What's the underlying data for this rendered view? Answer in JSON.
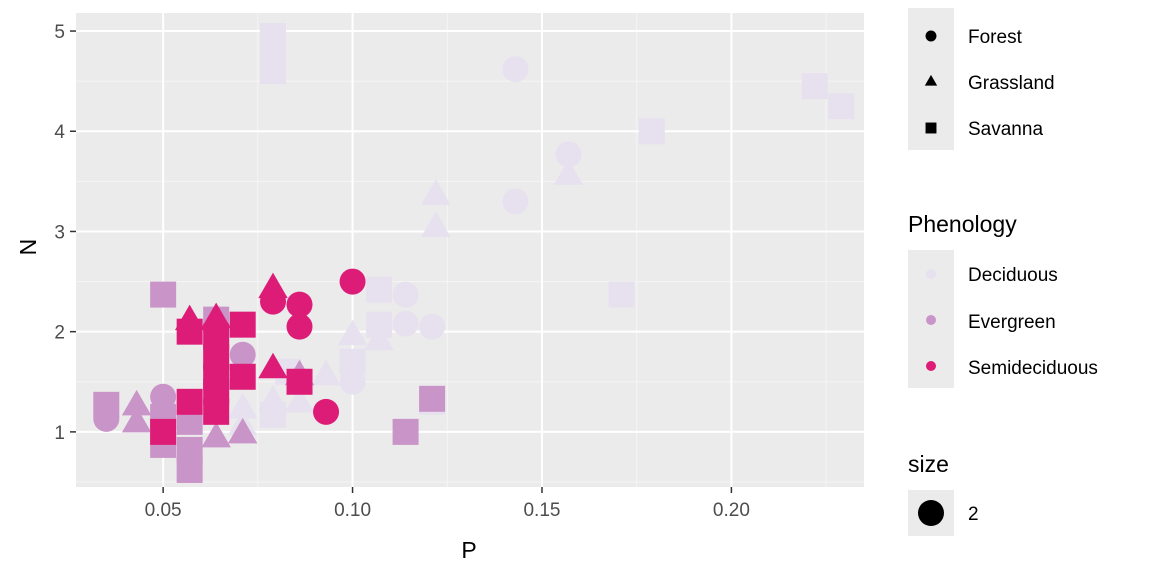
{
  "chart_data": {
    "type": "scatter",
    "xlabel": "P",
    "ylabel": "N",
    "xlim": [
      0.027,
      0.235
    ],
    "ylim": [
      0.45,
      5.18
    ],
    "x_ticks": [
      0.05,
      0.1,
      0.15,
      0.2
    ],
    "x_tick_labels": [
      "0.05",
      "0.10",
      "0.15",
      "0.20"
    ],
    "y_ticks": [
      1,
      2,
      3,
      4,
      5
    ],
    "y_tick_labels": [
      "1",
      "2",
      "3",
      "4",
      "5"
    ],
    "grid": true,
    "legend_position": "right",
    "shape_legend": {
      "title_visible": "",
      "entries": [
        {
          "label": "Forest",
          "shape": "circle"
        },
        {
          "label": "Grassland",
          "shape": "triangle"
        },
        {
          "label": "Savanna",
          "shape": "square"
        }
      ]
    },
    "color_legend": {
      "title": "Phenology",
      "entries": [
        {
          "label": "Deciduous",
          "color": "#e7e1ef"
        },
        {
          "label": "Evergreen",
          "color": "#c994c7"
        },
        {
          "label": "Semideciduous",
          "color": "#dd1c77"
        }
      ]
    },
    "size_legend": {
      "title": "size",
      "entries": [
        {
          "label": "2"
        }
      ]
    },
    "points": [
      {
        "x": 0.079,
        "y": 4.6,
        "shape": "square",
        "phenology": "Deciduous"
      },
      {
        "x": 0.079,
        "y": 4.95,
        "shape": "square",
        "phenology": "Deciduous"
      },
      {
        "x": 0.079,
        "y": 4.75,
        "shape": "square",
        "phenology": "Deciduous"
      },
      {
        "x": 0.143,
        "y": 4.62,
        "shape": "circle",
        "phenology": "Deciduous"
      },
      {
        "x": 0.157,
        "y": 3.77,
        "shape": "circle",
        "phenology": "Deciduous"
      },
      {
        "x": 0.157,
        "y": 3.55,
        "shape": "triangle",
        "phenology": "Deciduous"
      },
      {
        "x": 0.143,
        "y": 3.3,
        "shape": "circle",
        "phenology": "Deciduous"
      },
      {
        "x": 0.122,
        "y": 3.35,
        "shape": "triangle",
        "phenology": "Deciduous"
      },
      {
        "x": 0.122,
        "y": 3.03,
        "shape": "triangle",
        "phenology": "Deciduous"
      },
      {
        "x": 0.179,
        "y": 4.0,
        "shape": "square",
        "phenology": "Deciduous"
      },
      {
        "x": 0.222,
        "y": 4.45,
        "shape": "square",
        "phenology": "Deciduous"
      },
      {
        "x": 0.229,
        "y": 4.25,
        "shape": "square",
        "phenology": "Deciduous"
      },
      {
        "x": 0.171,
        "y": 2.37,
        "shape": "square",
        "phenology": "Deciduous"
      },
      {
        "x": 0.114,
        "y": 2.37,
        "shape": "circle",
        "phenology": "Deciduous"
      },
      {
        "x": 0.107,
        "y": 2.42,
        "shape": "square",
        "phenology": "Deciduous"
      },
      {
        "x": 0.114,
        "y": 2.08,
        "shape": "circle",
        "phenology": "Deciduous"
      },
      {
        "x": 0.121,
        "y": 2.05,
        "shape": "circle",
        "phenology": "Deciduous"
      },
      {
        "x": 0.107,
        "y": 2.07,
        "shape": "square",
        "phenology": "Deciduous"
      },
      {
        "x": 0.1,
        "y": 1.95,
        "shape": "triangle",
        "phenology": "Deciduous"
      },
      {
        "x": 0.107,
        "y": 1.9,
        "shape": "triangle",
        "phenology": "Deciduous"
      },
      {
        "x": 0.093,
        "y": 1.55,
        "shape": "triangle",
        "phenology": "Deciduous"
      },
      {
        "x": 0.1,
        "y": 1.5,
        "shape": "circle",
        "phenology": "Deciduous"
      },
      {
        "x": 0.1,
        "y": 1.7,
        "shape": "square",
        "phenology": "Deciduous"
      },
      {
        "x": 0.064,
        "y": 1.4,
        "shape": "triangle",
        "phenology": "Deciduous"
      },
      {
        "x": 0.071,
        "y": 1.22,
        "shape": "triangle",
        "phenology": "Deciduous"
      },
      {
        "x": 0.079,
        "y": 1.17,
        "shape": "square",
        "phenology": "Deciduous"
      },
      {
        "x": 0.079,
        "y": 1.3,
        "shape": "triangle",
        "phenology": "Deciduous"
      },
      {
        "x": 0.086,
        "y": 1.28,
        "shape": "triangle",
        "phenology": "Deciduous"
      },
      {
        "x": 0.071,
        "y": 1.05,
        "shape": "triangle",
        "phenology": "Deciduous"
      },
      {
        "x": 0.083,
        "y": 1.6,
        "shape": "square",
        "phenology": "Deciduous"
      },
      {
        "x": 0.057,
        "y": 1.3,
        "shape": "circle",
        "phenology": "Deciduous"
      },
      {
        "x": 0.05,
        "y": 1.2,
        "shape": "triangle",
        "phenology": "Deciduous"
      },
      {
        "x": 0.121,
        "y": 1.3,
        "shape": "square",
        "phenology": "Deciduous"
      },
      {
        "x": 0.05,
        "y": 2.37,
        "shape": "square",
        "phenology": "Evergreen"
      },
      {
        "x": 0.071,
        "y": 1.77,
        "shape": "circle",
        "phenology": "Evergreen"
      },
      {
        "x": 0.064,
        "y": 2.12,
        "shape": "square",
        "phenology": "Evergreen"
      },
      {
        "x": 0.035,
        "y": 1.27,
        "shape": "square",
        "phenology": "Evergreen"
      },
      {
        "x": 0.035,
        "y": 1.13,
        "shape": "circle",
        "phenology": "Evergreen"
      },
      {
        "x": 0.043,
        "y": 1.25,
        "shape": "triangle",
        "phenology": "Evergreen"
      },
      {
        "x": 0.043,
        "y": 1.08,
        "shape": "triangle",
        "phenology": "Evergreen"
      },
      {
        "x": 0.05,
        "y": 1.35,
        "shape": "circle",
        "phenology": "Evergreen"
      },
      {
        "x": 0.05,
        "y": 1.15,
        "shape": "square",
        "phenology": "Evergreen"
      },
      {
        "x": 0.05,
        "y": 0.87,
        "shape": "square",
        "phenology": "Evergreen"
      },
      {
        "x": 0.057,
        "y": 1.1,
        "shape": "square",
        "phenology": "Evergreen"
      },
      {
        "x": 0.057,
        "y": 0.62,
        "shape": "square",
        "phenology": "Evergreen"
      },
      {
        "x": 0.057,
        "y": 0.82,
        "shape": "square",
        "phenology": "Evergreen"
      },
      {
        "x": 0.064,
        "y": 0.93,
        "shape": "triangle",
        "phenology": "Evergreen"
      },
      {
        "x": 0.071,
        "y": 0.97,
        "shape": "triangle",
        "phenology": "Evergreen"
      },
      {
        "x": 0.086,
        "y": 1.55,
        "shape": "triangle",
        "phenology": "Evergreen"
      },
      {
        "x": 0.114,
        "y": 1.0,
        "shape": "square",
        "phenology": "Evergreen"
      },
      {
        "x": 0.121,
        "y": 1.33,
        "shape": "square",
        "phenology": "Evergreen"
      },
      {
        "x": 0.079,
        "y": 2.42,
        "shape": "triangle",
        "phenology": "Semideciduous"
      },
      {
        "x": 0.079,
        "y": 2.3,
        "shape": "circle",
        "phenology": "Semideciduous"
      },
      {
        "x": 0.086,
        "y": 2.27,
        "shape": "circle",
        "phenology": "Semideciduous"
      },
      {
        "x": 0.086,
        "y": 2.05,
        "shape": "circle",
        "phenology": "Semideciduous"
      },
      {
        "x": 0.1,
        "y": 2.5,
        "shape": "circle",
        "phenology": "Semideciduous"
      },
      {
        "x": 0.057,
        "y": 2.1,
        "shape": "triangle",
        "phenology": "Semideciduous"
      },
      {
        "x": 0.057,
        "y": 2.0,
        "shape": "square",
        "phenology": "Semideciduous"
      },
      {
        "x": 0.064,
        "y": 2.12,
        "shape": "triangle",
        "phenology": "Semideciduous"
      },
      {
        "x": 0.064,
        "y": 1.95,
        "shape": "square",
        "phenology": "Semideciduous"
      },
      {
        "x": 0.071,
        "y": 2.07,
        "shape": "square",
        "phenology": "Semideciduous"
      },
      {
        "x": 0.064,
        "y": 1.75,
        "shape": "square",
        "phenology": "Semideciduous"
      },
      {
        "x": 0.064,
        "y": 1.55,
        "shape": "square",
        "phenology": "Semideciduous"
      },
      {
        "x": 0.071,
        "y": 1.55,
        "shape": "square",
        "phenology": "Semideciduous"
      },
      {
        "x": 0.079,
        "y": 1.62,
        "shape": "triangle",
        "phenology": "Semideciduous"
      },
      {
        "x": 0.064,
        "y": 1.4,
        "shape": "square",
        "phenology": "Semideciduous"
      },
      {
        "x": 0.057,
        "y": 1.3,
        "shape": "square",
        "phenology": "Semideciduous"
      },
      {
        "x": 0.093,
        "y": 1.2,
        "shape": "circle",
        "phenology": "Semideciduous"
      },
      {
        "x": 0.064,
        "y": 1.2,
        "shape": "square",
        "phenology": "Semideciduous"
      },
      {
        "x": 0.05,
        "y": 1.0,
        "shape": "square",
        "phenology": "Semideciduous"
      },
      {
        "x": 0.086,
        "y": 1.5,
        "shape": "square",
        "phenology": "Semideciduous"
      }
    ]
  }
}
